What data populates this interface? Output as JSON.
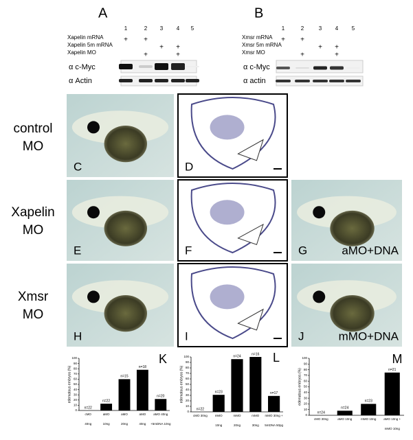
{
  "blot_a": {
    "letter": "A",
    "lanes": [
      "1",
      "2",
      "3",
      "4",
      "5"
    ],
    "rows": [
      {
        "label": "Xapelin mRNA",
        "signs": [
          "+",
          "+",
          null,
          null,
          null
        ]
      },
      {
        "label": "Xapelin 5m mRNA",
        "signs": [
          null,
          null,
          "+",
          "+",
          null
        ]
      },
      {
        "label": "Xapelin MO",
        "signs": [
          null,
          "+",
          null,
          "+",
          null
        ]
      }
    ],
    "bands": [
      "α c-Myc",
      "α Actin"
    ]
  },
  "blot_b": {
    "letter": "B",
    "lanes": [
      "1",
      "2",
      "3",
      "4",
      "5"
    ],
    "rows": [
      {
        "label": "Xmsr mRNA",
        "signs": [
          "+",
          "+",
          null,
          null,
          null
        ]
      },
      {
        "label": "Xmsr 5m mRNA",
        "signs": [
          null,
          null,
          "+",
          "+",
          null
        ]
      },
      {
        "label": "Xmsr MO",
        "signs": [
          null,
          "+",
          null,
          "+",
          null
        ]
      }
    ],
    "bands": [
      "α c-Myc",
      "α actin"
    ]
  },
  "row_labels": [
    [
      "control",
      "MO"
    ],
    [
      "Xapelin",
      "MO"
    ],
    [
      "Xmsr",
      "MO"
    ]
  ],
  "panels": [
    {
      "letter": "C"
    },
    {
      "letter": "D"
    },
    {
      "letter": "E"
    },
    {
      "letter": "F"
    },
    {
      "letter": "G",
      "caption": "aMO+DNA"
    },
    {
      "letter": "H"
    },
    {
      "letter": "I"
    },
    {
      "letter": "J",
      "caption": "mMO+DNA"
    }
  ],
  "chart_data": [
    {
      "type": "bar",
      "title": "K",
      "y_label": "edematous embryos (%)",
      "categories": [
        [
          "cMO",
          "40ng"
        ],
        [
          "aMO",
          "10ng"
        ],
        [
          "aMO",
          "20ng"
        ],
        [
          "aMO",
          "40ng"
        ],
        [
          "aMO  40ng",
          "+5mDNA  10ng"
        ]
      ],
      "values": [
        0,
        13,
        60,
        78,
        22
      ],
      "annotations": [
        "n=22",
        "n=22",
        "n=15",
        "n=18",
        "n=20"
      ],
      "ylim": [
        0,
        100
      ],
      "yticks": [
        0,
        10,
        20,
        30,
        40,
        50,
        60,
        70,
        80,
        90,
        100
      ],
      "color": "#000000"
    },
    {
      "type": "bar",
      "title": "L",
      "y_label": "edematous embryos (%)",
      "categories": [
        [
          "cMO  30ng"
        ],
        [
          "mMO",
          "10ng"
        ],
        [
          "mMO",
          "20ng"
        ],
        [
          "mMO",
          "30ng"
        ],
        [
          "mMO  30ng +",
          "5mDNA  50pg"
        ]
      ],
      "values": [
        0,
        31,
        96,
        100,
        29
      ],
      "annotations": [
        "n=22",
        "n=23",
        "n=24",
        "n=16",
        "n=17"
      ],
      "ylim": [
        0,
        100
      ],
      "yticks": [
        0,
        10,
        20,
        30,
        40,
        50,
        60,
        70,
        80,
        90,
        100
      ],
      "color": "#000000"
    },
    {
      "type": "bar",
      "title": "M",
      "y_label": "edematous embryos (%)",
      "categories": [
        [
          "cMO  30ng"
        ],
        [
          "aMO  10ng"
        ],
        [
          "mMO  10ng"
        ],
        [
          "aMO  10ng +",
          "mMO  10ng"
        ]
      ],
      "values": [
        0,
        8,
        20,
        75
      ],
      "annotations": [
        "n=24",
        "n=24",
        "n=23",
        "n=21"
      ],
      "ylim": [
        0,
        100
      ],
      "yticks": [
        0,
        10,
        20,
        30,
        40,
        50,
        60,
        70,
        80,
        90,
        100
      ],
      "color": "#000000"
    }
  ]
}
